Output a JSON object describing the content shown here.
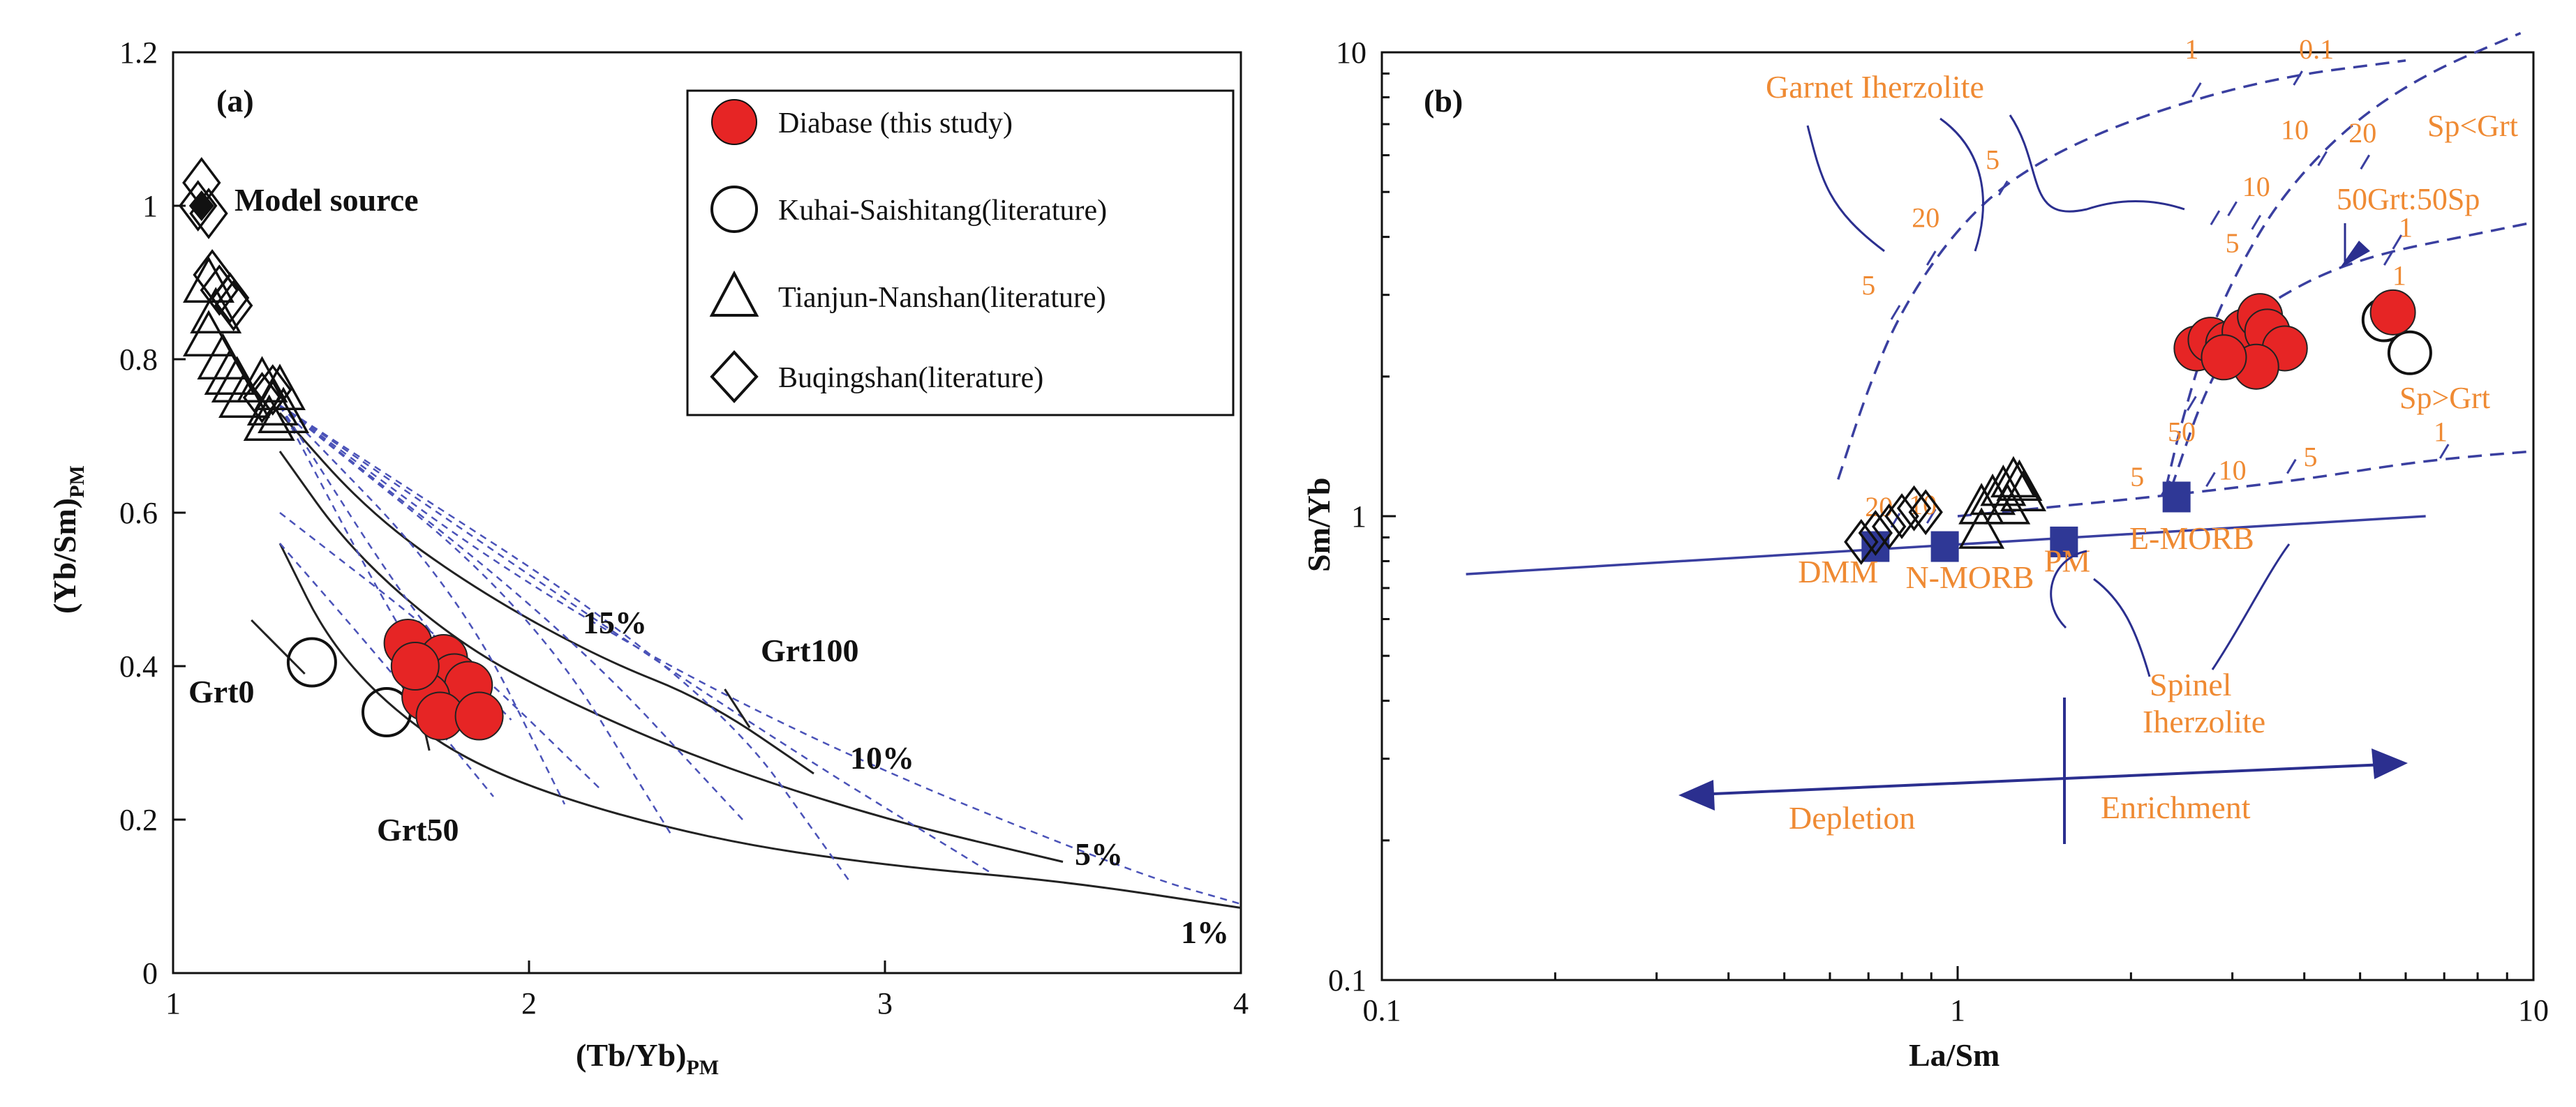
{
  "chart_data": [
    {
      "type": "scatter",
      "panel_label": "(a)",
      "xlabel": "(Tb/Yb)",
      "xlabel_sub": "PM",
      "ylabel": "(Yb/Sm)",
      "ylabel_sub": "PM",
      "xlim": [
        1,
        4
      ],
      "ylim": [
        0,
        1.2
      ],
      "xticks": [
        "1",
        "2",
        "3",
        "4"
      ],
      "yticks": [
        "0",
        "0.2",
        "0.4",
        "0.6",
        "0.8",
        "1",
        "1.2"
      ],
      "legend": [
        {
          "name": "Diabase (this study)",
          "marker": "filled-circle"
        },
        {
          "name": "Kuhai-Saishitang(literature)",
          "marker": "open-circle"
        },
        {
          "name": "Tianjun-Nanshan(literature)",
          "marker": "open-triangle"
        },
        {
          "name": "Buqingshan(literature)",
          "marker": "open-diamond"
        }
      ],
      "series": [
        {
          "name": "Diabase (this study)",
          "points": [
            [
              1.66,
              0.43
            ],
            [
              1.7,
              0.39
            ],
            [
              1.76,
              0.41
            ],
            [
              1.79,
              0.385
            ],
            [
              1.83,
              0.375
            ],
            [
              1.71,
              0.36
            ],
            [
              1.75,
              0.335
            ],
            [
              1.86,
              0.335
            ],
            [
              1.68,
              0.4
            ]
          ]
        },
        {
          "name": "Kuhai-Saishitang(literature)",
          "points": [
            [
              1.39,
              0.405
            ],
            [
              1.6,
              0.34
            ]
          ]
        },
        {
          "name": "Tianjun-Nanshan(literature)",
          "points": [
            [
              1.1,
              0.9
            ],
            [
              1.12,
              0.86
            ],
            [
              1.1,
              0.83
            ],
            [
              1.14,
              0.8
            ],
            [
              1.16,
              0.78
            ],
            [
              1.18,
              0.77
            ],
            [
              1.25,
              0.77
            ],
            [
              1.3,
              0.76
            ],
            [
              1.28,
              0.74
            ],
            [
              1.31,
              0.73
            ],
            [
              1.27,
              0.72
            ],
            [
              1.2,
              0.75
            ]
          ]
        },
        {
          "name": "Buqingshan(literature)",
          "points": [
            [
              1.08,
              1.03
            ],
            [
              1.1,
              0.99
            ],
            [
              1.07,
              1.0
            ],
            [
              1.13,
              0.89
            ],
            [
              1.16,
              0.88
            ],
            [
              1.17,
              0.87
            ],
            [
              1.11,
              0.91
            ],
            [
              1.28,
              0.76
            ],
            [
              1.25,
              0.75
            ]
          ]
        }
      ],
      "model_source": {
        "label": "Model source",
        "point": [
          1.08,
          1.0
        ]
      },
      "curve_labels": {
        "grt0": "Grt0",
        "grt50": "Grt50",
        "grt100": "Grt100"
      },
      "melt_labels": [
        "15%",
        "10%",
        "5%",
        "1%"
      ]
    },
    {
      "type": "scatter",
      "panel_label": "(b)",
      "xscale": "log",
      "yscale": "log",
      "xlabel": "La/Sm",
      "ylabel": "Sm/Yb",
      "xlim": [
        0.1,
        10
      ],
      "ylim": [
        0.1,
        10
      ],
      "xticks": [
        "0.1",
        "1",
        "10"
      ],
      "yticks": [
        "0.1",
        "1",
        "10"
      ],
      "reservoirs": [
        {
          "name": "DMM",
          "x": 0.72,
          "y": 0.86
        },
        {
          "name": "N-MORB",
          "x": 0.95,
          "y": 0.86
        },
        {
          "name": "PM",
          "x": 1.53,
          "y": 0.88
        },
        {
          "name": "E-MORB",
          "x": 2.4,
          "y": 1.1
        }
      ],
      "series": [
        {
          "name": "Diabase (this study)",
          "points": [
            [
              2.6,
              2.3
            ],
            [
              2.75,
              2.4
            ],
            [
              2.95,
              2.35
            ],
            [
              3.15,
              2.5
            ],
            [
              3.35,
              2.7
            ],
            [
              3.45,
              2.5
            ],
            [
              3.7,
              2.3
            ],
            [
              3.3,
              2.1
            ],
            [
              2.9,
              2.2
            ],
            [
              5.7,
              2.75
            ]
          ]
        },
        {
          "name": "Kuhai-Saishitang(literature)",
          "points": [
            [
              5.5,
              2.65
            ],
            [
              6.1,
              2.25
            ]
          ]
        },
        {
          "name": "Tianjun-Nanshan(literature)",
          "points": [
            [
              1.1,
              1.05
            ],
            [
              1.15,
              1.1
            ],
            [
              1.2,
              1.15
            ],
            [
              1.25,
              1.2
            ],
            [
              1.3,
              1.12
            ],
            [
              1.22,
              1.05
            ],
            [
              1.1,
              0.93
            ],
            [
              1.28,
              1.18
            ]
          ]
        },
        {
          "name": "Buqingshan(literature)",
          "points": [
            [
              0.68,
              0.88
            ],
            [
              0.72,
              0.92
            ],
            [
              0.76,
              0.95
            ],
            [
              0.8,
              1.0
            ],
            [
              0.84,
              1.04
            ],
            [
              0.88,
              1.02
            ]
          ]
        }
      ],
      "annotations": {
        "garnet": "Garnet Iherzolite",
        "spinel_1": "Spinel",
        "spinel_2": "Iherzolite",
        "sp_lt_grt": "Sp<Grt",
        "mix": "50Grt:50Sp",
        "sp_gt_grt": "Sp>Grt",
        "depletion": "Depletion",
        "enrichment": "Enrichment"
      },
      "tick_labels": [
        "1",
        "0.1",
        "5",
        "10",
        "20",
        "5",
        "10",
        "20",
        "1",
        "5",
        "10",
        "50",
        "1",
        "5",
        "10",
        "5",
        "1",
        "20",
        "10"
      ]
    }
  ]
}
